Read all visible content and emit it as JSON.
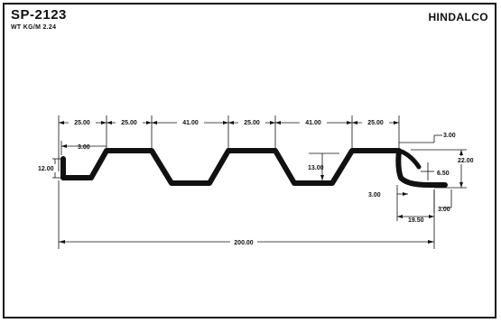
{
  "header": {
    "part_number": "SP-2123",
    "weight": "WT KG/M 2.24",
    "brand": "HINDALCO"
  },
  "dimensions": {
    "top_1": "25.00",
    "top_2": "25.00",
    "top_3": "41.00",
    "top_4": "25.00",
    "top_5": "41.00",
    "top_6": "25.00",
    "left_lip": "3.00",
    "left_height": "12.00",
    "depth": "13.00",
    "right_top": "3.00",
    "right_height": "22.00",
    "right_inner": "6.50",
    "right_gap": "3.00",
    "right_width": "19.50",
    "right_bottom": "3.00",
    "overall": "200.00"
  }
}
